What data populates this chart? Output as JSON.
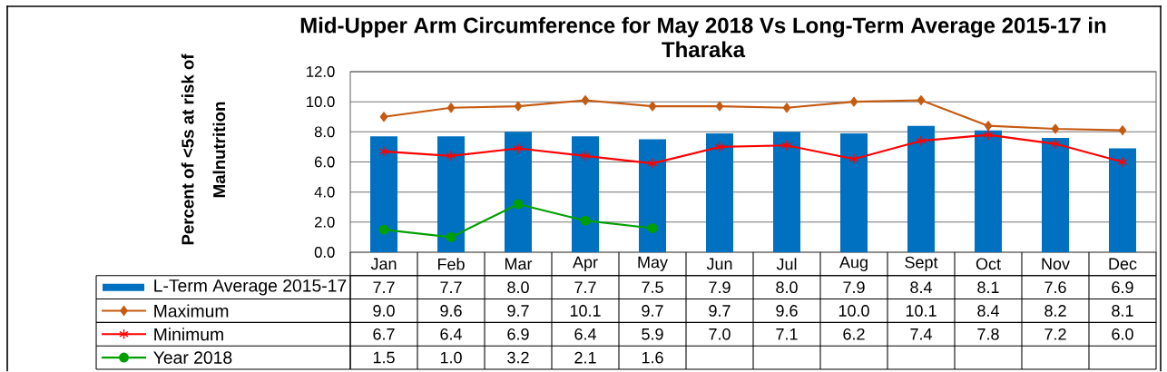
{
  "chart_data": {
    "type": "bar",
    "title": "Mid-Upper Arm Circumference for May 2018 Vs Long-Term Average 2015-17 in Tharaka",
    "ylabel": "Percent of <5s at risk of Malnutrition",
    "categories": [
      "Jan",
      "Feb",
      "Mar",
      "Apr",
      "May",
      "Jun",
      "Jul",
      "Aug",
      "Sept",
      "Oct",
      "Nov",
      "Dec"
    ],
    "series": [
      {
        "name": "L-Term Average 2015-17",
        "color": "#0070c0",
        "values": [
          7.7,
          7.7,
          8.0,
          7.7,
          7.5,
          7.9,
          8.0,
          7.9,
          8.4,
          8.1,
          7.6,
          6.9
        ],
        "value_labels": [
          "7.7",
          "7.7",
          "8.0",
          "7.7",
          "7.5",
          "7.9",
          "8.0",
          "7.9",
          "8.4",
          "8.1",
          "7.6",
          "6.9"
        ]
      },
      {
        "name": "Maximum",
        "type": "line",
        "color": "#c55a11",
        "marker": "diamond",
        "values": [
          9.0,
          9.6,
          9.7,
          10.1,
          9.7,
          9.7,
          9.6,
          10.0,
          10.1,
          8.4,
          8.2,
          8.1
        ],
        "value_labels": [
          "9.0",
          "9.6",
          "9.7",
          "10.1",
          "9.7",
          "9.7",
          "9.6",
          "10.0",
          "10.1",
          "8.4",
          "8.2",
          "8.1"
        ]
      },
      {
        "name": "Minimum",
        "type": "line",
        "color": "#ff0000",
        "marker": "cross",
        "values": [
          6.7,
          6.4,
          6.9,
          6.4,
          5.9,
          7.0,
          7.1,
          6.2,
          7.4,
          7.8,
          7.2,
          6.0
        ],
        "value_labels": [
          "6.7",
          "6.4",
          "6.9",
          "6.4",
          "5.9",
          "7.0",
          "7.1",
          "6.2",
          "7.4",
          "7.8",
          "7.2",
          "6.0"
        ]
      },
      {
        "name": "Year 2018",
        "type": "line",
        "color": "#00a000",
        "marker": "circle",
        "values": [
          1.5,
          1.0,
          3.2,
          2.1,
          1.6,
          null,
          null,
          null,
          null,
          null,
          null,
          null
        ],
        "value_labels": [
          "1.5",
          "1.0",
          "3.2",
          "2.1",
          "1.6",
          null,
          null,
          null,
          null,
          null,
          null,
          null
        ]
      }
    ],
    "ylim": [
      0,
      12
    ],
    "yticks": [
      {
        "value": 0,
        "label": "0.0"
      },
      {
        "value": 2,
        "label": "2.0"
      },
      {
        "value": 4,
        "label": "4.0"
      },
      {
        "value": 6,
        "label": "6.0"
      },
      {
        "value": 8,
        "label": "8.0"
      },
      {
        "value": 10,
        "label": "10.0"
      },
      {
        "value": 12,
        "label": "12.0"
      }
    ],
    "grid": "y",
    "legend": "bottom"
  }
}
